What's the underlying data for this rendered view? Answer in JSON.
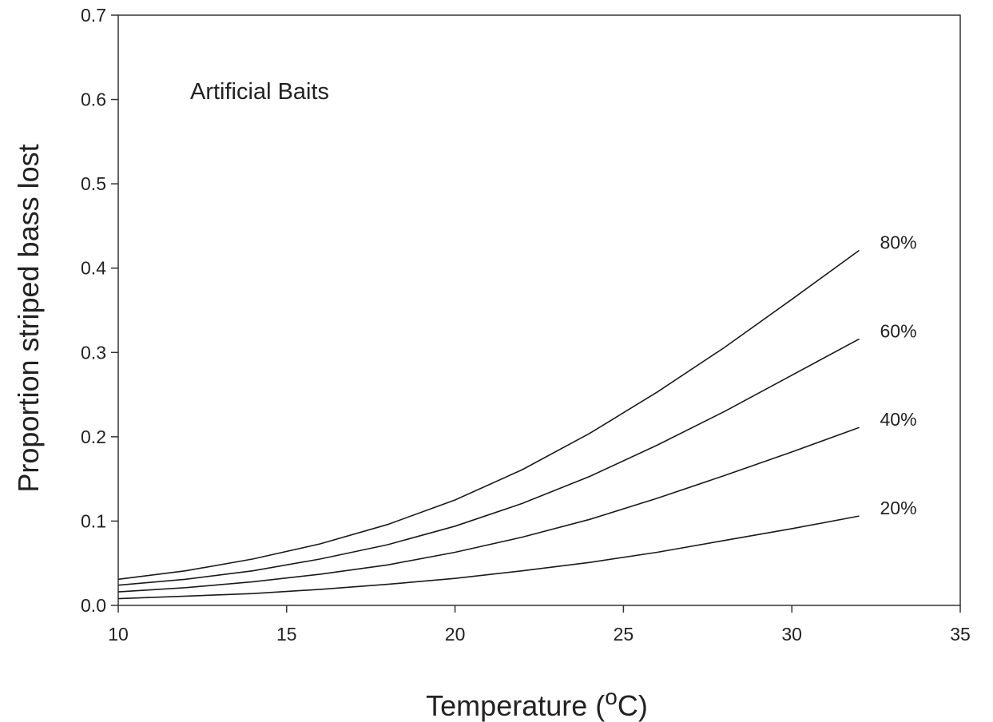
{
  "chart_data": {
    "type": "line",
    "annotation": "Artificial Baits",
    "xlabel_main": "Temperature (",
    "xlabel_super": "o",
    "xlabel_end": "C)",
    "ylabel": "Proportion striped bass lost",
    "xlim": [
      10,
      35
    ],
    "ylim": [
      0,
      0.7
    ],
    "xticks": [
      10,
      15,
      20,
      25,
      30,
      35
    ],
    "yticks": [
      "0.0",
      "0.1",
      "0.2",
      "0.3",
      "0.4",
      "0.5",
      "0.6",
      "0.7"
    ],
    "x": [
      10,
      12,
      14,
      16,
      18,
      20,
      22,
      24,
      26,
      28,
      30,
      32
    ],
    "series": [
      {
        "label": "80%",
        "values": [
          0.031,
          0.041,
          0.055,
          0.073,
          0.096,
          0.125,
          0.161,
          0.204,
          0.253,
          0.306,
          0.363,
          0.421
        ]
      },
      {
        "label": "60%",
        "values": [
          0.024,
          0.031,
          0.041,
          0.055,
          0.072,
          0.094,
          0.121,
          0.153,
          0.19,
          0.23,
          0.273,
          0.316
        ]
      },
      {
        "label": "40%",
        "values": [
          0.016,
          0.021,
          0.028,
          0.037,
          0.048,
          0.063,
          0.081,
          0.102,
          0.127,
          0.154,
          0.182,
          0.211
        ]
      },
      {
        "label": "20%",
        "values": [
          0.008,
          0.011,
          0.014,
          0.019,
          0.025,
          0.032,
          0.041,
          0.051,
          0.063,
          0.077,
          0.091,
          0.106
        ]
      }
    ],
    "grid": false,
    "line_color": "#1a1a1a"
  }
}
